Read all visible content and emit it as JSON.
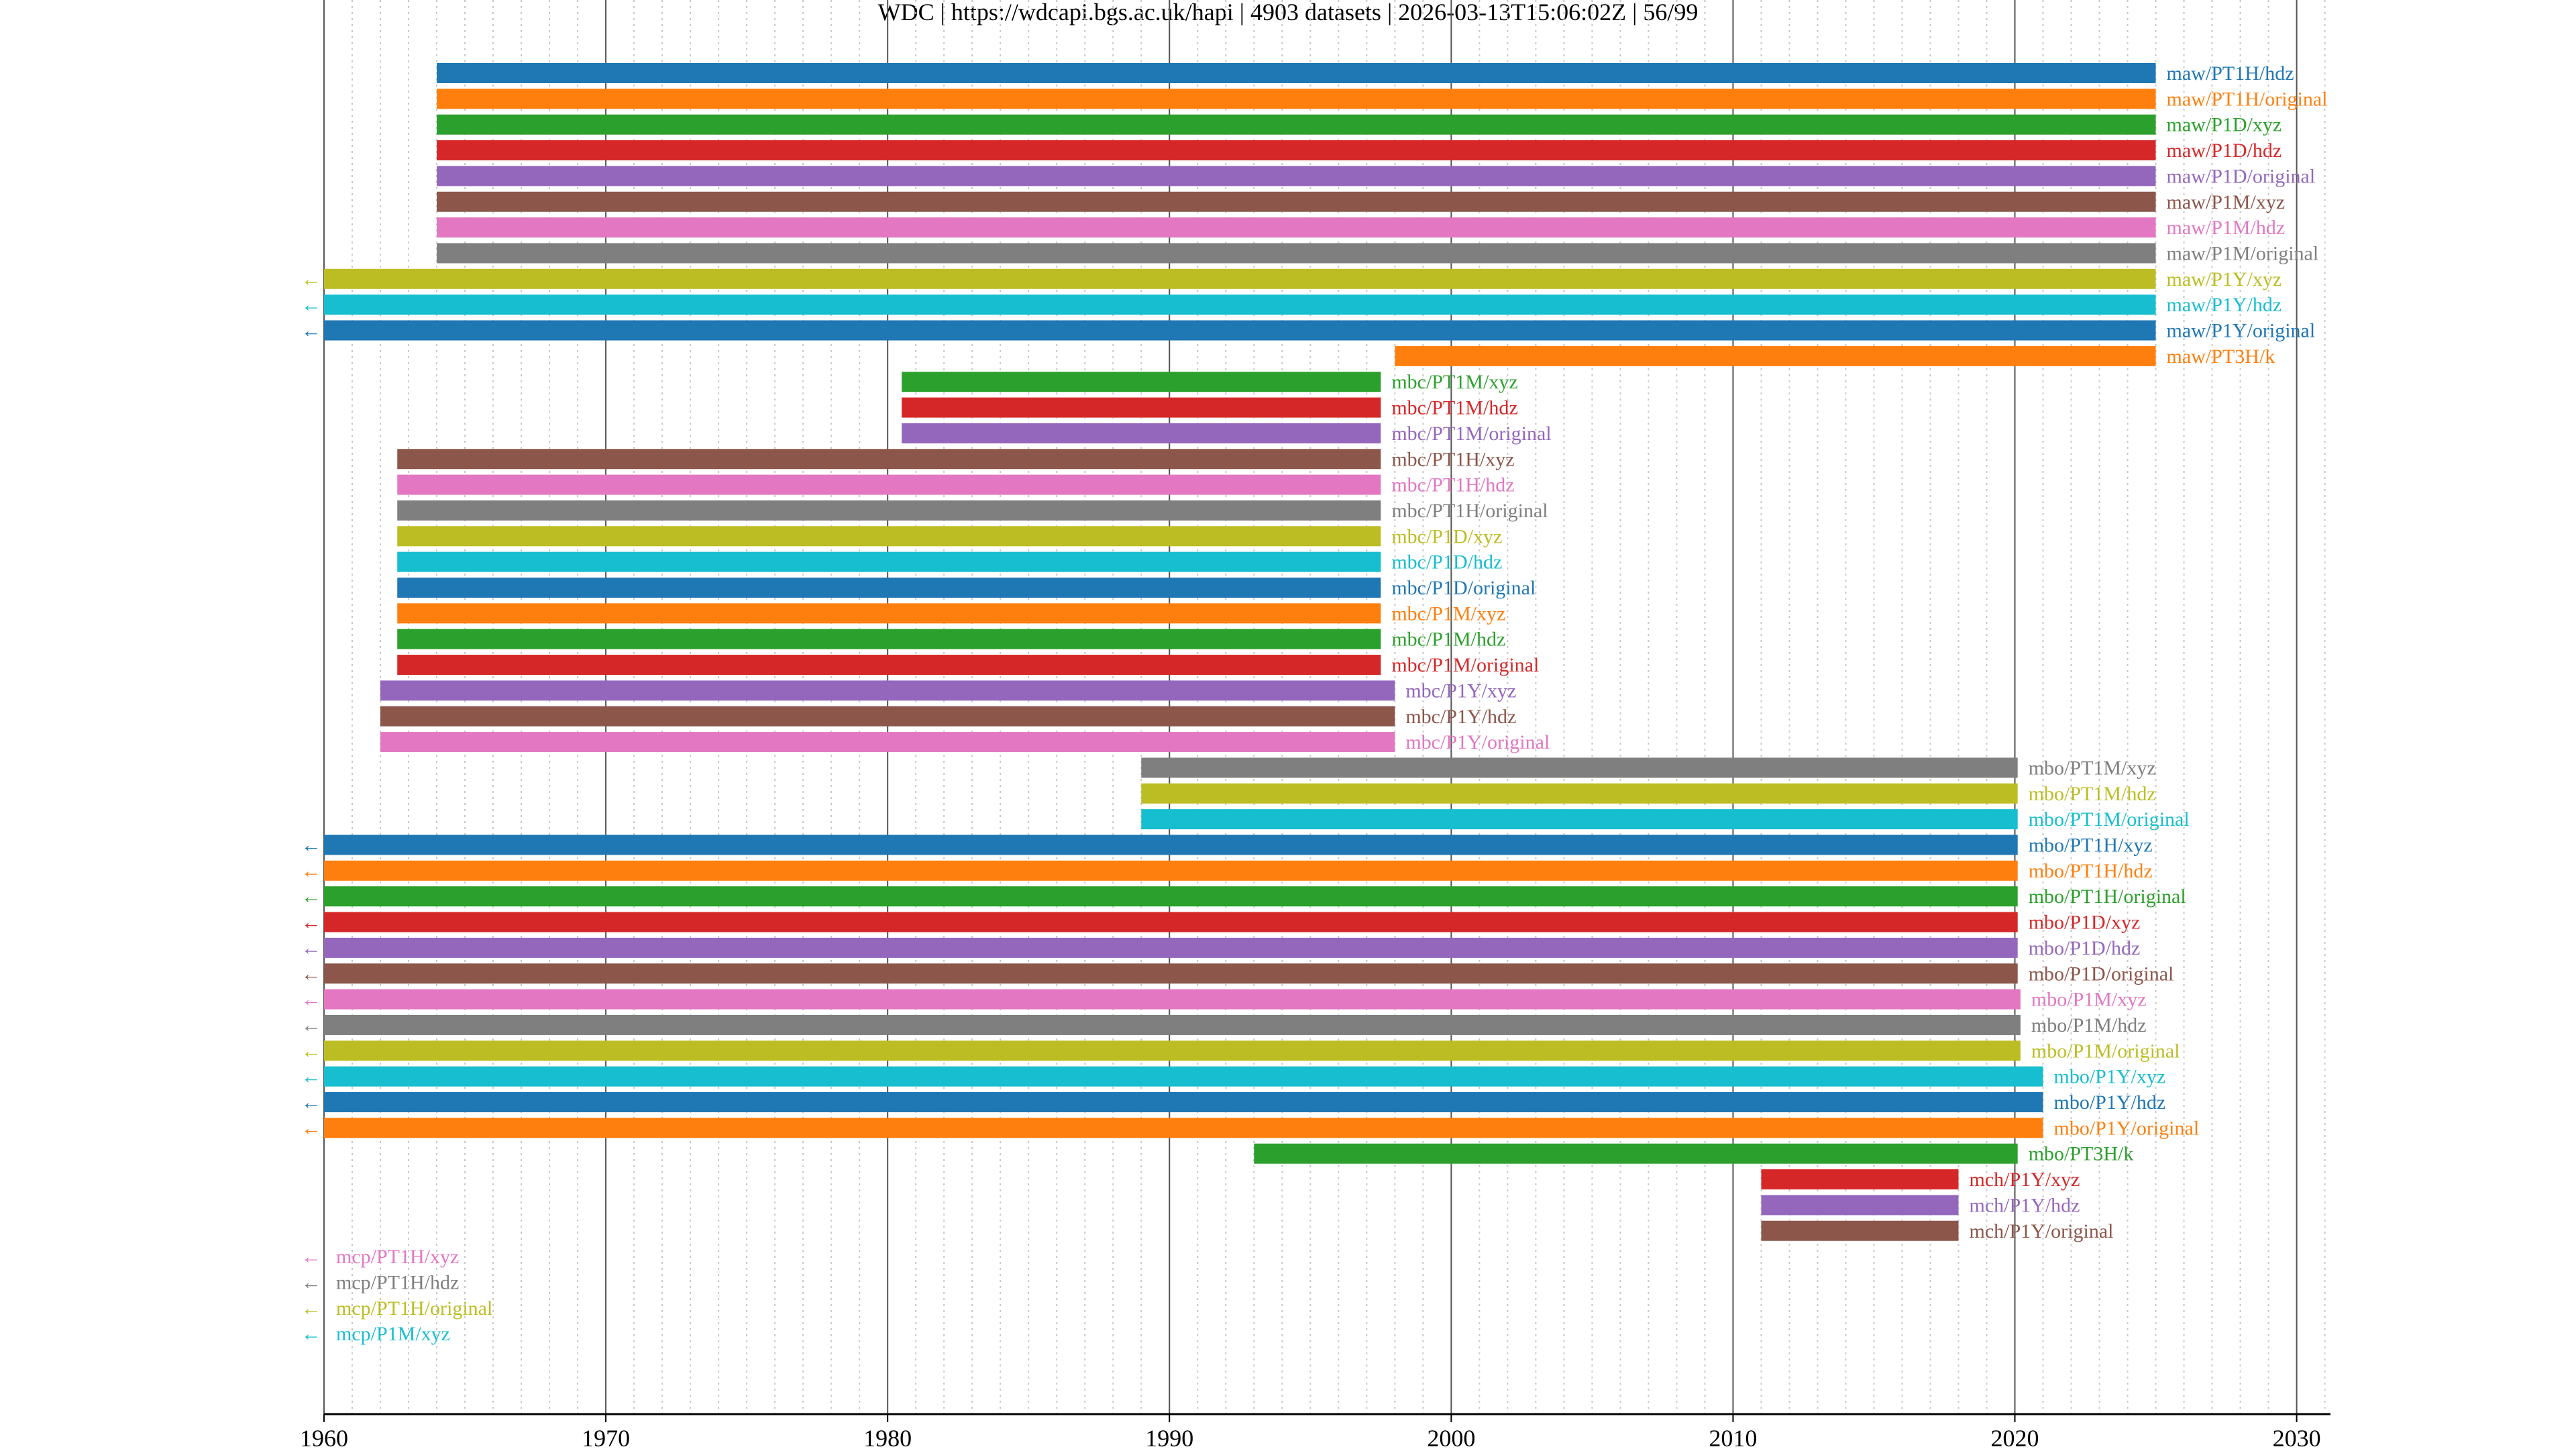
{
  "title": "WDC | https://wdcapi.bgs.ac.uk/hapi | 4903 datasets | 2026-03-13T15:06:02Z | 56/99",
  "palette": [
    "#1f77b4",
    "#ff7f0e",
    "#2ca02c",
    "#d62728",
    "#9467bd",
    "#8c564b",
    "#e377c2",
    "#7f7f7f",
    "#bcbd22",
    "#17becf"
  ],
  "chart_data": {
    "type": "bar",
    "orientation": "horizontal",
    "description": "Dataset time coverage (Gantt style)",
    "xlim": [
      1960,
      2031.2
    ],
    "x_ticks": [
      "1960",
      "1970",
      "1980",
      "1990",
      "2000",
      "2010",
      "2020",
      "2030"
    ],
    "x_tick_values": [
      1960,
      1970,
      1980,
      1990,
      2000,
      2010,
      2020,
      2030
    ],
    "grid": "minor vertical dotted every year, major every 10 years",
    "truncated_marker": "←",
    "series": [
      {
        "name": "maw/PT1H/hdz",
        "start": 1964.0,
        "end": 2025.0
      },
      {
        "name": "maw/PT1H/original",
        "start": 1964.0,
        "end": 2025.0
      },
      {
        "name": "maw/P1D/xyz",
        "start": 1964.0,
        "end": 2025.0
      },
      {
        "name": "maw/P1D/hdz",
        "start": 1964.0,
        "end": 2025.0
      },
      {
        "name": "maw/P1D/original",
        "start": 1964.0,
        "end": 2025.0
      },
      {
        "name": "maw/P1M/xyz",
        "start": 1964.0,
        "end": 2025.0
      },
      {
        "name": "maw/P1M/hdz",
        "start": 1964.0,
        "end": 2025.0
      },
      {
        "name": "maw/P1M/original",
        "start": 1964.0,
        "end": 2025.0
      },
      {
        "name": "maw/P1Y/xyz",
        "start": 1960.0,
        "end": 2025.0,
        "truncated": true
      },
      {
        "name": "maw/P1Y/hdz",
        "start": 1960.0,
        "end": 2025.0,
        "truncated": true
      },
      {
        "name": "maw/P1Y/original",
        "start": 1960.0,
        "end": 2025.0,
        "truncated": true
      },
      {
        "name": "maw/PT3H/k",
        "start": 1998.0,
        "end": 2025.0
      },
      {
        "name": "mbc/PT1M/xyz",
        "start": 1980.5,
        "end": 1997.5
      },
      {
        "name": "mbc/PT1M/hdz",
        "start": 1980.5,
        "end": 1997.5
      },
      {
        "name": "mbc/PT1M/original",
        "start": 1980.5,
        "end": 1997.5
      },
      {
        "name": "mbc/PT1H/xyz",
        "start": 1962.6,
        "end": 1997.5
      },
      {
        "name": "mbc/PT1H/hdz",
        "start": 1962.6,
        "end": 1997.5
      },
      {
        "name": "mbc/PT1H/original",
        "start": 1962.6,
        "end": 1997.5
      },
      {
        "name": "mbc/P1D/xyz",
        "start": 1962.6,
        "end": 1997.5
      },
      {
        "name": "mbc/P1D/hdz",
        "start": 1962.6,
        "end": 1997.5
      },
      {
        "name": "mbc/P1D/original",
        "start": 1962.6,
        "end": 1997.5
      },
      {
        "name": "mbc/P1M/xyz",
        "start": 1962.6,
        "end": 1997.5
      },
      {
        "name": "mbc/P1M/hdz",
        "start": 1962.6,
        "end": 1997.5
      },
      {
        "name": "mbc/P1M/original",
        "start": 1962.6,
        "end": 1997.5
      },
      {
        "name": "mbc/P1Y/xyz",
        "start": 1962.0,
        "end": 1998.0
      },
      {
        "name": "mbc/P1Y/hdz",
        "start": 1962.0,
        "end": 1998.0
      },
      {
        "name": "mbc/P1Y/original",
        "start": 1962.0,
        "end": 1998.0
      },
      {
        "name": "mbo/PT1M/xyz",
        "start": 1989.0,
        "end": 2020.1
      },
      {
        "name": "mbo/PT1M/hdz",
        "start": 1989.0,
        "end": 2020.1
      },
      {
        "name": "mbo/PT1M/original",
        "start": 1989.0,
        "end": 2020.1
      },
      {
        "name": "mbo/PT1H/xyz",
        "start": 1960.0,
        "end": 2020.1,
        "truncated": true
      },
      {
        "name": "mbo/PT1H/hdz",
        "start": 1960.0,
        "end": 2020.1,
        "truncated": true
      },
      {
        "name": "mbo/PT1H/original",
        "start": 1960.0,
        "end": 2020.1,
        "truncated": true
      },
      {
        "name": "mbo/P1D/xyz",
        "start": 1960.0,
        "end": 2020.1,
        "truncated": true
      },
      {
        "name": "mbo/P1D/hdz",
        "start": 1960.0,
        "end": 2020.1,
        "truncated": true
      },
      {
        "name": "mbo/P1D/original",
        "start": 1960.0,
        "end": 2020.1,
        "truncated": true
      },
      {
        "name": "mbo/P1M/xyz",
        "start": 1960.0,
        "end": 2020.2,
        "truncated": true
      },
      {
        "name": "mbo/P1M/hdz",
        "start": 1960.0,
        "end": 2020.2,
        "truncated": true
      },
      {
        "name": "mbo/P1M/original",
        "start": 1960.0,
        "end": 2020.2,
        "truncated": true
      },
      {
        "name": "mbo/P1Y/xyz",
        "start": 1960.0,
        "end": 2021.0,
        "truncated": true
      },
      {
        "name": "mbo/P1Y/hdz",
        "start": 1960.0,
        "end": 2021.0,
        "truncated": true
      },
      {
        "name": "mbo/P1Y/original",
        "start": 1960.0,
        "end": 2021.0,
        "truncated": true
      },
      {
        "name": "mbo/PT3H/k",
        "start": 1993.0,
        "end": 2020.1
      },
      {
        "name": "mch/P1Y/xyz",
        "start": 2011.0,
        "end": 2018.0
      },
      {
        "name": "mch/P1Y/hdz",
        "start": 2011.0,
        "end": 2018.0
      },
      {
        "name": "mch/P1Y/original",
        "start": 2011.0,
        "end": 2018.0
      },
      {
        "name": "mcp/PT1H/xyz",
        "start": null,
        "end": null,
        "truncated": true
      },
      {
        "name": "mcp/PT1H/hdz",
        "start": null,
        "end": null,
        "truncated": true
      },
      {
        "name": "mcp/PT1H/original",
        "start": null,
        "end": null,
        "truncated": true
      },
      {
        "name": "mcp/P1M/xyz",
        "start": null,
        "end": null,
        "truncated": true
      }
    ]
  }
}
